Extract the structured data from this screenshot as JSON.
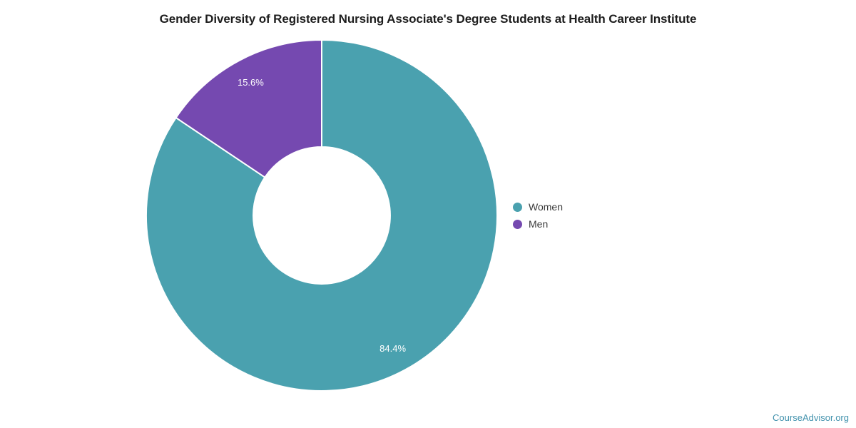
{
  "chart_data": {
    "type": "pie",
    "title": "Gender Diversity of Registered Nursing Associate's Degree Students at Health Career Institute",
    "labels": [
      "Women",
      "Men"
    ],
    "values": [
      84.4,
      15.6
    ],
    "slice_labels": [
      "84.4%",
      "15.6%"
    ],
    "colors": [
      "#4AA1AF",
      "#7549B0"
    ],
    "hole": 0.39,
    "rotation_deg": 0,
    "direction": "clockwise",
    "legend_position": "right",
    "slice_label_color": "#ffffff",
    "background_color": "#ffffff"
  },
  "footer": {
    "link_text": "CourseAdvisor.org",
    "link_color": "#4292ad"
  }
}
